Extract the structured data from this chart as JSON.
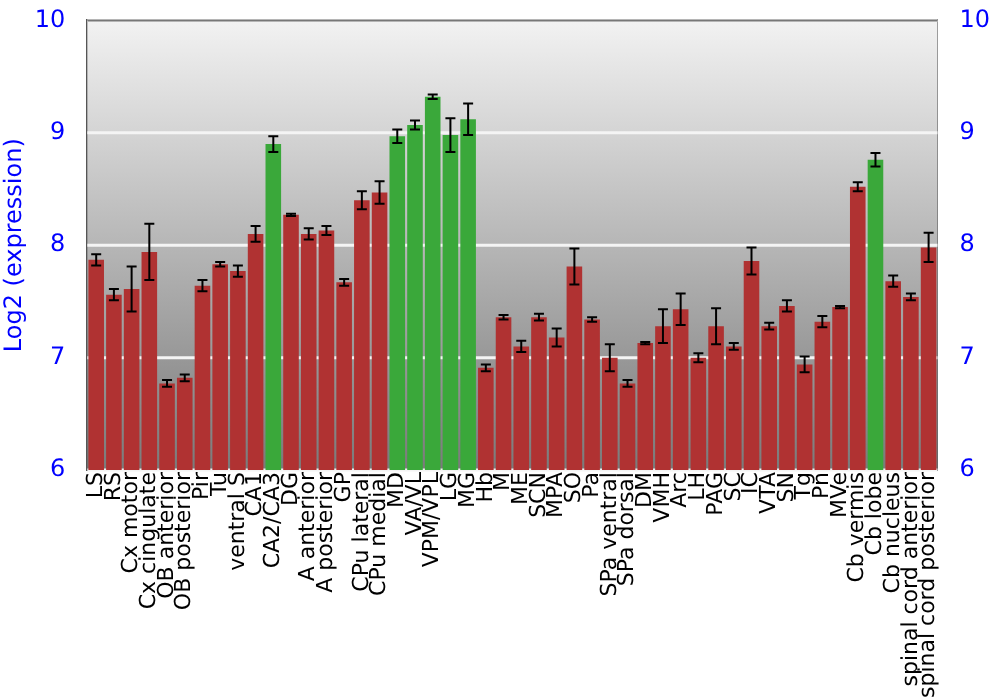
{
  "chart_data": {
    "type": "bar",
    "ylabel": "Log2 (expression)",
    "categories": [
      "LS",
      "RS",
      "Cx motor",
      "Cx cingulate",
      "OB anterior",
      "OB posterior",
      "Pir",
      "Tu",
      "ventral S",
      "CA1",
      "CA2/CA3",
      "DG",
      "A anterior",
      "A posterior",
      "GP",
      "CPu lateral",
      "CPu medial",
      "MD",
      "VA/VL",
      "VPM/VPL",
      "LG",
      "MG",
      "Hb",
      "M",
      "ME",
      "SCN",
      "MPA",
      "SO",
      "Pa",
      "SPa ventral",
      "SPa dorsal",
      "DM",
      "VMH",
      "Arc",
      "LH",
      "PAG",
      "SC",
      "IC",
      "VTA",
      "SN",
      "Tg",
      "Pn",
      "MVe",
      "Cb vermis",
      "Cb lobe",
      "Cb nucleus",
      "spinal cord anterior",
      "spinal cord posterior"
    ],
    "values": [
      7.87,
      7.56,
      7.61,
      7.94,
      6.77,
      6.82,
      7.64,
      7.83,
      7.77,
      8.1,
      8.9,
      8.27,
      8.1,
      8.13,
      7.67,
      8.4,
      8.47,
      8.97,
      9.07,
      9.32,
      8.98,
      9.12,
      6.91,
      7.36,
      7.1,
      7.36,
      7.18,
      7.81,
      7.34,
      7.0,
      6.77,
      7.13,
      7.28,
      7.43,
      7.0,
      7.28,
      7.1,
      7.86,
      7.28,
      7.46,
      6.94,
      7.32,
      7.45,
      8.52,
      8.76,
      7.68,
      7.54,
      7.98
    ],
    "errors": [
      0.05,
      0.05,
      0.2,
      0.25,
      0.03,
      0.03,
      0.05,
      0.02,
      0.05,
      0.07,
      0.07,
      0.01,
      0.05,
      0.04,
      0.03,
      0.08,
      0.1,
      0.06,
      0.04,
      0.02,
      0.15,
      0.14,
      0.03,
      0.02,
      0.05,
      0.03,
      0.08,
      0.16,
      0.02,
      0.12,
      0.03,
      0.01,
      0.15,
      0.14,
      0.04,
      0.16,
      0.03,
      0.12,
      0.03,
      0.05,
      0.07,
      0.05,
      0.01,
      0.04,
      0.06,
      0.05,
      0.03,
      0.13
    ],
    "colors": [
      "#b03232",
      "#b03232",
      "#b03232",
      "#b03232",
      "#b03232",
      "#b03232",
      "#b03232",
      "#b03232",
      "#b03232",
      "#b03232",
      "#3aa83a",
      "#b03232",
      "#b03232",
      "#b03232",
      "#b03232",
      "#b03232",
      "#b03232",
      "#3aa83a",
      "#3aa83a",
      "#3aa83a",
      "#3aa83a",
      "#3aa83a",
      "#b03232",
      "#b03232",
      "#b03232",
      "#b03232",
      "#b03232",
      "#b03232",
      "#b03232",
      "#b03232",
      "#b03232",
      "#b03232",
      "#b03232",
      "#b03232",
      "#b03232",
      "#b03232",
      "#b03232",
      "#b03232",
      "#b03232",
      "#b03232",
      "#b03232",
      "#b03232",
      "#b03232",
      "#b03232",
      "#3aa83a",
      "#b03232",
      "#b03232",
      "#b03232"
    ],
    "ylim": [
      6,
      10
    ],
    "yticks": [
      6,
      7,
      8,
      9,
      10
    ],
    "y2lim": [
      6,
      10
    ],
    "y2ticks": [
      6,
      7,
      8,
      9,
      10
    ],
    "grid": "y",
    "legend": false
  }
}
